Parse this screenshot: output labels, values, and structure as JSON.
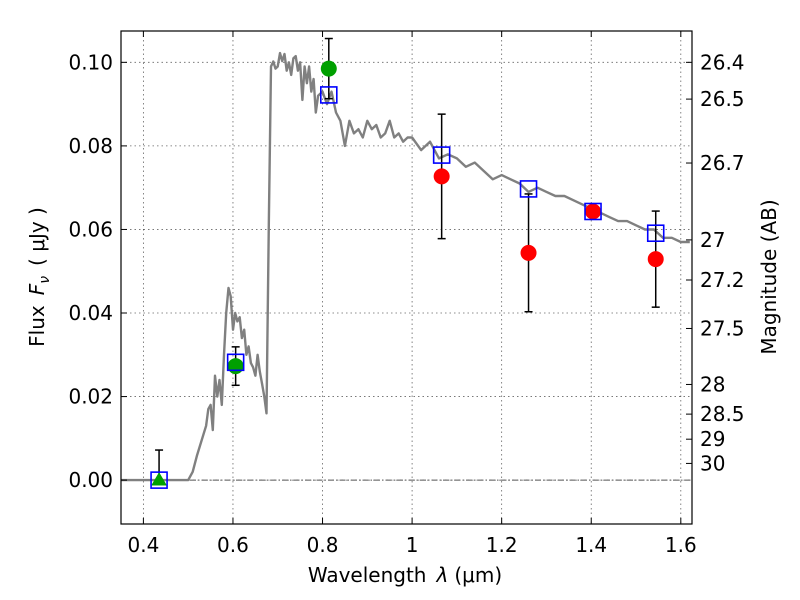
{
  "chart_data": {
    "type": "scatter",
    "xlabel_prefix": "Wavelength",
    "xlabel_symbol": "λ",
    "xlabel_unit": "(μm)",
    "ylabel_prefix": "Flux",
    "ylabel_symbol": "F",
    "ylabel_symbol_sub": "ν",
    "ylabel_unit": "( μJy )",
    "ylabel_right": "Magnitude (AB)",
    "xlim": [
      0.35,
      1.625
    ],
    "ylim": [
      -0.0105,
      0.1075
    ],
    "grid": true,
    "x_ticks": [
      {
        "value": 0.4,
        "label": "0.4"
      },
      {
        "value": 0.6,
        "label": "0.6"
      },
      {
        "value": 0.8,
        "label": "0.8"
      },
      {
        "value": 1.0,
        "label": "1"
      },
      {
        "value": 1.2,
        "label": "1.2"
      },
      {
        "value": 1.4,
        "label": "1.4"
      },
      {
        "value": 1.6,
        "label": "1.6"
      }
    ],
    "y_ticks": [
      {
        "value": 0.0,
        "label": "0.00"
      },
      {
        "value": 0.02,
        "label": "0.02"
      },
      {
        "value": 0.04,
        "label": "0.04"
      },
      {
        "value": 0.06,
        "label": "0.06"
      },
      {
        "value": 0.08,
        "label": "0.08"
      },
      {
        "value": 0.1,
        "label": "0.10"
      }
    ],
    "magnitude_ticks": [
      {
        "label": "26.4",
        "flux": 0.1
      },
      {
        "label": "26.5",
        "flux": 0.0912
      },
      {
        "label": "26.7",
        "flux": 0.0759
      },
      {
        "label": "27",
        "flux": 0.0575
      },
      {
        "label": "27.2",
        "flux": 0.0479
      },
      {
        "label": "27.5",
        "flux": 0.0363
      },
      {
        "label": "28",
        "flux": 0.0229
      },
      {
        "label": "28.5",
        "flux": 0.0158
      },
      {
        "label": "29",
        "flux": 0.0098
      },
      {
        "label": "30",
        "flux": 0.004
      }
    ],
    "model_spectrum": {
      "color": "#808080",
      "x": [
        0.35,
        0.5,
        0.51,
        0.52,
        0.54,
        0.545,
        0.55,
        0.555,
        0.56,
        0.565,
        0.57,
        0.575,
        0.58,
        0.585,
        0.59,
        0.595,
        0.6,
        0.605,
        0.61,
        0.615,
        0.62,
        0.625,
        0.63,
        0.635,
        0.64,
        0.645,
        0.65,
        0.655,
        0.66,
        0.665,
        0.67,
        0.675,
        0.68,
        0.685,
        0.69,
        0.695,
        0.7,
        0.705,
        0.71,
        0.715,
        0.72,
        0.725,
        0.73,
        0.735,
        0.74,
        0.745,
        0.75,
        0.755,
        0.76,
        0.765,
        0.77,
        0.775,
        0.78,
        0.785,
        0.79,
        0.8,
        0.81,
        0.82,
        0.83,
        0.84,
        0.85,
        0.86,
        0.87,
        0.88,
        0.89,
        0.9,
        0.91,
        0.92,
        0.93,
        0.94,
        0.95,
        0.96,
        0.97,
        0.98,
        0.99,
        1.0,
        1.02,
        1.04,
        1.06,
        1.08,
        1.1,
        1.12,
        1.14,
        1.16,
        1.18,
        1.2,
        1.22,
        1.24,
        1.26,
        1.28,
        1.3,
        1.32,
        1.34,
        1.36,
        1.38,
        1.4,
        1.42,
        1.44,
        1.46,
        1.48,
        1.5,
        1.52,
        1.54,
        1.56,
        1.58,
        1.6,
        1.62
      ],
      "y": [
        0.0,
        0.0,
        0.002,
        0.006,
        0.013,
        0.017,
        0.018,
        0.012,
        0.025,
        0.02,
        0.024,
        0.018,
        0.03,
        0.04,
        0.046,
        0.044,
        0.036,
        0.04,
        0.038,
        0.039,
        0.034,
        0.036,
        0.03,
        0.032,
        0.028,
        0.027,
        0.025,
        0.03,
        0.026,
        0.023,
        0.02,
        0.016,
        0.061,
        0.099,
        0.1002,
        0.0985,
        0.099,
        0.1022,
        0.1003,
        0.102,
        0.098,
        0.1,
        0.097,
        0.101,
        0.1015,
        0.098,
        0.1,
        0.091,
        0.099,
        0.095,
        0.099,
        0.093,
        0.096,
        0.088,
        0.092,
        0.093,
        0.09,
        0.093,
        0.088,
        0.086,
        0.08,
        0.086,
        0.083,
        0.084,
        0.082,
        0.086,
        0.084,
        0.085,
        0.082,
        0.083,
        0.086,
        0.082,
        0.083,
        0.081,
        0.082,
        0.082,
        0.079,
        0.081,
        0.077,
        0.078,
        0.077,
        0.075,
        0.076,
        0.074,
        0.072,
        0.073,
        0.072,
        0.071,
        0.069,
        0.07,
        0.069,
        0.068,
        0.068,
        0.067,
        0.066,
        0.065,
        0.064,
        0.063,
        0.062,
        0.062,
        0.061,
        0.06,
        0.06,
        0.058,
        0.058,
        0.057,
        0.057
      ]
    },
    "model_points": {
      "color": "#0000ff",
      "marker": "open-square",
      "x": [
        0.435,
        0.606,
        0.814,
        1.066,
        1.26,
        1.404,
        1.544
      ],
      "y": [
        0.0,
        0.0282,
        0.0922,
        0.0778,
        0.0697,
        0.0643,
        0.0591
      ]
    },
    "observations": [
      {
        "x": 0.435,
        "y": 0.0,
        "yerr_lo": 0.0,
        "yerr_hi": 0.0072,
        "color": "#00a000",
        "marker": "triangle"
      },
      {
        "x": 0.606,
        "y": 0.0273,
        "yerr_lo": 0.0046,
        "yerr_hi": 0.0046,
        "color": "#00a000",
        "marker": "circle"
      },
      {
        "x": 0.814,
        "y": 0.0985,
        "yerr_lo": 0.0072,
        "yerr_hi": 0.0072,
        "color": "#00a000",
        "marker": "circle"
      },
      {
        "x": 1.066,
        "y": 0.0727,
        "yerr_lo": 0.0149,
        "yerr_hi": 0.0149,
        "color": "#ff0000",
        "marker": "circle"
      },
      {
        "x": 1.26,
        "y": 0.0544,
        "yerr_lo": 0.0141,
        "yerr_hi": 0.0141,
        "color": "#ff0000",
        "marker": "circle"
      },
      {
        "x": 1.404,
        "y": 0.0643,
        "yerr_lo": 0.0,
        "yerr_hi": 0.0,
        "color": "#ff0000",
        "marker": "circle"
      },
      {
        "x": 1.544,
        "y": 0.0529,
        "yerr_lo": 0.0115,
        "yerr_hi": 0.0115,
        "color": "#ff0000",
        "marker": "circle"
      }
    ],
    "zero_line": {
      "y": 0.0,
      "style": "dash-dot"
    }
  }
}
